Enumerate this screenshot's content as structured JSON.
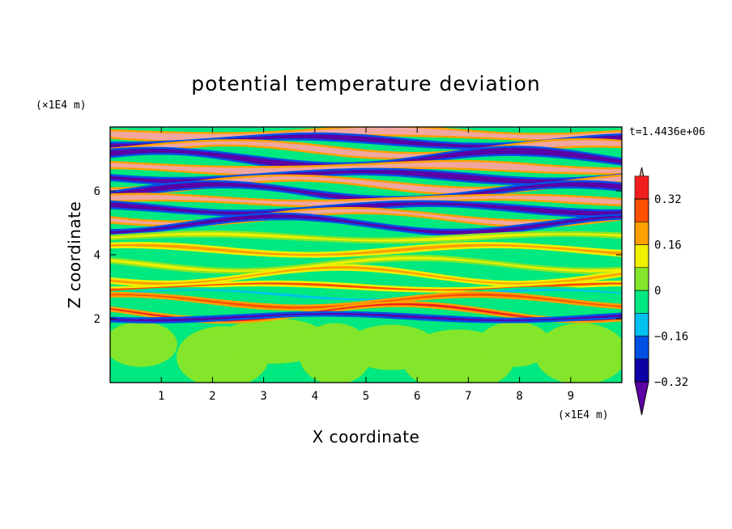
{
  "chart_data": {
    "type": "heatmap",
    "title": "potential temperature deviation",
    "xlabel": "X coordinate",
    "ylabel": "Z coordinate",
    "x_unit": "(×1E4 m)",
    "y_unit": "(×1E4 m)",
    "time_label": "t=1.4436e+06",
    "xlim": [
      0,
      10
    ],
    "ylim": [
      0,
      8
    ],
    "x_ticks": [
      "1",
      "2",
      "3",
      "4",
      "5",
      "6",
      "7",
      "8",
      "9"
    ],
    "y_ticks": [
      "2",
      "4",
      "6"
    ],
    "colorbar": {
      "labels": [
        "0.32",
        "0.16",
        "0",
        "−0.16",
        "−0.32"
      ],
      "label_values": [
        0.32,
        0.16,
        0,
        -0.16,
        -0.32
      ],
      "levels": [
        -0.4,
        -0.32,
        -0.24,
        -0.16,
        -0.08,
        0,
        0.08,
        0.16,
        0.24,
        0.32,
        0.4
      ],
      "colors": [
        "#5b00a5",
        "#0f00a5",
        "#0050e6",
        "#00c0f0",
        "#00e880",
        "#84e62a",
        "#f0f000",
        "#ffa000",
        "#ff5000",
        "#f01e1e",
        "#f2a6a0"
      ]
    },
    "bands": [
      {
        "z": 7.78,
        "dz": 0.22,
        "value": 0.42
      },
      {
        "z": 7.55,
        "dz": 0.16,
        "value": -0.42
      },
      {
        "z": 7.3,
        "dz": 0.18,
        "value": 0.42
      },
      {
        "z": 7.0,
        "dz": 0.2,
        "value": -0.42
      },
      {
        "z": 6.72,
        "dz": 0.2,
        "value": 0.42
      },
      {
        "z": 6.45,
        "dz": 0.18,
        "value": -0.42
      },
      {
        "z": 6.2,
        "dz": 0.17,
        "value": 0.42
      },
      {
        "z": 5.95,
        "dz": 0.16,
        "value": -0.42
      },
      {
        "z": 5.7,
        "dz": 0.15,
        "value": 0.42
      },
      {
        "z": 5.45,
        "dz": 0.15,
        "value": -0.42
      },
      {
        "z": 5.18,
        "dz": 0.13,
        "value": 0.42
      },
      {
        "z": 4.95,
        "dz": 0.12,
        "value": -0.4
      },
      {
        "z": 4.55,
        "dz": 0.1,
        "value": 0.1
      },
      {
        "z": 4.15,
        "dz": 0.1,
        "value": 0.18
      },
      {
        "z": 3.7,
        "dz": 0.09,
        "value": 0.12
      },
      {
        "z": 3.35,
        "dz": 0.08,
        "value": 0.2
      },
      {
        "z": 3.0,
        "dz": 0.07,
        "value": 0.26
      },
      {
        "z": 2.75,
        "dz": 0.07,
        "value": -0.1
      },
      {
        "z": 2.55,
        "dz": 0.06,
        "value": 0.3
      },
      {
        "z": 2.2,
        "dz": 0.06,
        "value": 0.32
      },
      {
        "z": 2.05,
        "dz": 0.05,
        "value": -0.34
      }
    ]
  }
}
